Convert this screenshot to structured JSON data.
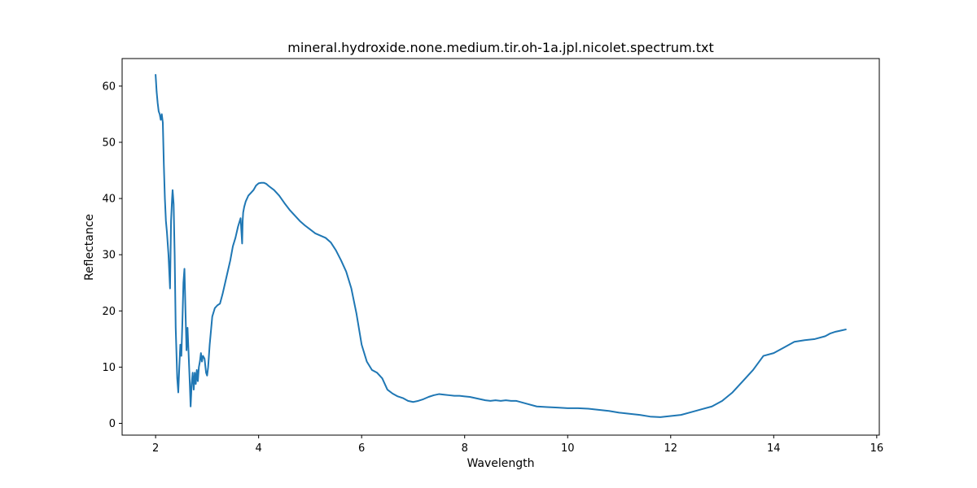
{
  "chart_data": {
    "type": "line",
    "title": "mineral.hydroxide.none.medium.tir.oh-1a.jpl.nicolet.spectrum.txt",
    "xlabel": "Wavelength",
    "ylabel": "Reflectance",
    "xlim": [
      1.35,
      16.05
    ],
    "ylim": [
      -2.1,
      64.9
    ],
    "x_ticks": [
      2,
      4,
      6,
      8,
      10,
      12,
      14,
      16
    ],
    "y_ticks": [
      0,
      10,
      20,
      30,
      40,
      50,
      60
    ],
    "grid": false,
    "legend": "none",
    "series": [
      {
        "color": "#1f77b4",
        "x": [
          2.0,
          2.02,
          2.04,
          2.06,
          2.08,
          2.1,
          2.12,
          2.14,
          2.16,
          2.18,
          2.2,
          2.22,
          2.25,
          2.28,
          2.3,
          2.32,
          2.33,
          2.35,
          2.37,
          2.39,
          2.4,
          2.42,
          2.44,
          2.46,
          2.48,
          2.5,
          2.52,
          2.54,
          2.56,
          2.58,
          2.6,
          2.62,
          2.64,
          2.66,
          2.68,
          2.7,
          2.72,
          2.74,
          2.76,
          2.78,
          2.8,
          2.82,
          2.84,
          2.86,
          2.88,
          2.9,
          2.92,
          2.95,
          2.98,
          3.0,
          3.02,
          3.05,
          3.08,
          3.1,
          3.15,
          3.2,
          3.25,
          3.3,
          3.35,
          3.4,
          3.45,
          3.5,
          3.55,
          3.6,
          3.65,
          3.68,
          3.69,
          3.7,
          3.72,
          3.75,
          3.8,
          3.85,
          3.9,
          3.95,
          4.0,
          4.05,
          4.1,
          4.15,
          4.2,
          4.3,
          4.4,
          4.5,
          4.6,
          4.7,
          4.8,
          4.9,
          5.0,
          5.1,
          5.2,
          5.3,
          5.4,
          5.5,
          5.6,
          5.7,
          5.8,
          5.9,
          6.0,
          6.1,
          6.2,
          6.3,
          6.4,
          6.5,
          6.6,
          6.7,
          6.8,
          6.9,
          7.0,
          7.1,
          7.2,
          7.3,
          7.4,
          7.5,
          7.6,
          7.7,
          7.8,
          7.9,
          8.0,
          8.1,
          8.2,
          8.3,
          8.4,
          8.5,
          8.6,
          8.7,
          8.8,
          8.9,
          9.0,
          9.2,
          9.4,
          9.6,
          9.8,
          10.0,
          10.2,
          10.4,
          10.6,
          10.8,
          11.0,
          11.2,
          11.4,
          11.6,
          11.8,
          12.0,
          12.2,
          12.4,
          12.6,
          12.8,
          13.0,
          13.2,
          13.4,
          13.6,
          13.8,
          14.0,
          14.2,
          14.4,
          14.6,
          14.8,
          15.0,
          15.1,
          15.2,
          15.3,
          15.4
        ],
        "y": [
          62.0,
          59.0,
          57.0,
          55.5,
          55.0,
          54.0,
          55.0,
          53.5,
          46.0,
          40.0,
          36.0,
          34.0,
          30.0,
          24.0,
          36.0,
          40.0,
          41.5,
          39.0,
          30.0,
          17.0,
          14.0,
          8.0,
          5.5,
          10.0,
          14.0,
          12.0,
          18.0,
          25.0,
          27.5,
          20.0,
          13.0,
          17.0,
          12.5,
          8.0,
          3.0,
          7.0,
          9.0,
          6.0,
          9.0,
          7.0,
          9.5,
          7.5,
          10.0,
          11.0,
          12.5,
          11.0,
          12.0,
          11.5,
          9.0,
          8.5,
          10.0,
          14.0,
          17.0,
          19.0,
          20.5,
          21.0,
          21.3,
          23.0,
          25.0,
          27.0,
          29.0,
          31.5,
          33.0,
          35.0,
          36.5,
          32.0,
          36.0,
          37.5,
          38.5,
          39.5,
          40.5,
          41.0,
          41.5,
          42.3,
          42.7,
          42.8,
          42.8,
          42.6,
          42.2,
          41.5,
          40.5,
          39.2,
          38.0,
          37.0,
          36.0,
          35.2,
          34.5,
          33.8,
          33.4,
          33.0,
          32.2,
          30.8,
          29.0,
          27.0,
          24.0,
          19.5,
          14.0,
          11.0,
          9.5,
          9.0,
          8.0,
          6.0,
          5.3,
          4.8,
          4.5,
          4.0,
          3.8,
          4.0,
          4.3,
          4.7,
          5.0,
          5.2,
          5.1,
          5.0,
          4.9,
          4.9,
          4.8,
          4.7,
          4.5,
          4.3,
          4.1,
          4.0,
          4.1,
          4.0,
          4.1,
          4.0,
          4.0,
          3.5,
          3.0,
          2.9,
          2.8,
          2.7,
          2.7,
          2.6,
          2.4,
          2.2,
          1.9,
          1.7,
          1.5,
          1.2,
          1.1,
          1.3,
          1.5,
          2.0,
          2.5,
          3.0,
          4.0,
          5.5,
          7.5,
          9.5,
          12.0,
          12.5,
          13.5,
          14.5,
          14.8,
          15.0,
          15.5,
          16.0,
          16.3,
          16.5,
          16.7
        ]
      }
    ]
  }
}
